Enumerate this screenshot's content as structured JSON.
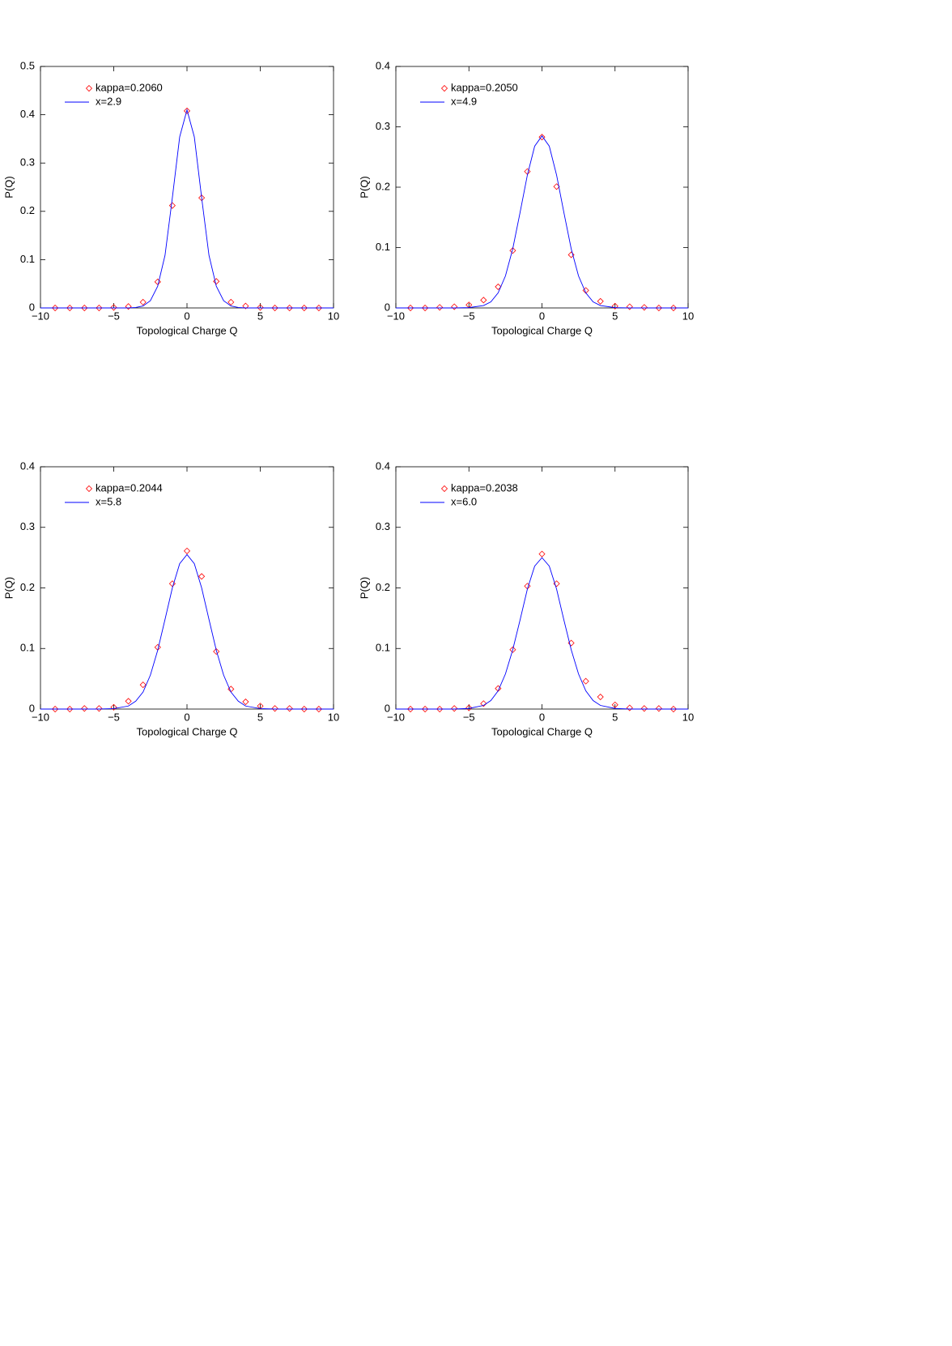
{
  "chart_data": [
    {
      "type": "scatter",
      "xlabel": "Topological Charge Q",
      "ylabel": "P(Q)",
      "xlim": [
        -10,
        10
      ],
      "xticks": [
        {
          "value": -10,
          "label": "−10"
        },
        {
          "value": -5,
          "label": "−5"
        },
        0,
        5,
        10
      ],
      "ylim": [
        0,
        0.5
      ],
      "yticks": [
        0,
        0.1,
        0.2,
        0.3,
        0.4,
        0.5
      ],
      "series": [
        {
          "name": "kappa=0.2060",
          "type": "scatter",
          "marker": "diamond",
          "color": "#ff0000",
          "x": [
            -9,
            -8,
            -7,
            -6,
            -5,
            -4,
            -3,
            -2,
            -1,
            0,
            1,
            2,
            3,
            4,
            5,
            6,
            7,
            8,
            9
          ],
          "values": [
            0,
            0,
            0,
            0,
            0.001,
            0.003,
            0.012,
            0.054,
            0.212,
            0.408,
            0.228,
            0.055,
            0.012,
            0.004,
            0.001,
            0,
            0,
            0,
            0
          ]
        },
        {
          "name": "x=2.9",
          "type": "line",
          "color": "#0000ff",
          "x": [
            -10,
            -6,
            -5,
            -4,
            -3.5,
            -3,
            -2.5,
            -2,
            -1.5,
            -1,
            -0.5,
            0,
            0.5,
            1,
            1.5,
            2,
            2.5,
            3,
            3.5,
            4,
            5,
            6,
            10
          ],
          "values": [
            0,
            0,
            0,
            0,
            0.001,
            0.004,
            0.015,
            0.045,
            0.109,
            0.228,
            0.354,
            0.41,
            0.354,
            0.228,
            0.109,
            0.045,
            0.015,
            0.004,
            0.001,
            0,
            0,
            0,
            0
          ]
        }
      ]
    },
    {
      "type": "scatter",
      "xlabel": "Topological Charge Q",
      "ylabel": "P(Q)",
      "xlim": [
        -10,
        10
      ],
      "xticks": [
        {
          "value": -10,
          "label": "−10"
        },
        {
          "value": -5,
          "label": "−5"
        },
        0,
        5,
        10
      ],
      "ylim": [
        0,
        0.4
      ],
      "yticks": [
        0,
        0.1,
        0.2,
        0.3,
        0.4
      ],
      "series": [
        {
          "name": "kappa=0.2050",
          "type": "scatter",
          "marker": "diamond",
          "color": "#ff0000",
          "x": [
            -9,
            -8,
            -7,
            -6,
            -5,
            -4,
            -3,
            -2,
            -1,
            0,
            1,
            2,
            3,
            4,
            5,
            6,
            7,
            8,
            9
          ],
          "values": [
            0,
            0,
            0.001,
            0.002,
            0.005,
            0.013,
            0.035,
            0.095,
            0.226,
            0.283,
            0.201,
            0.088,
            0.029,
            0.011,
            0.003,
            0.002,
            0.001,
            0,
            0
          ]
        },
        {
          "name": "x=4.9",
          "type": "line",
          "color": "#0000ff",
          "x": [
            -10,
            -6,
            -5,
            -4,
            -3.5,
            -3,
            -2.5,
            -2,
            -1.5,
            -1,
            -0.5,
            0,
            0.5,
            1,
            1.5,
            2,
            2.5,
            3,
            3.5,
            4,
            5,
            6,
            10
          ],
          "values": [
            0,
            0,
            0.0005,
            0.004,
            0.01,
            0.025,
            0.053,
            0.098,
            0.158,
            0.22,
            0.268,
            0.285,
            0.268,
            0.22,
            0.158,
            0.098,
            0.053,
            0.025,
            0.01,
            0.004,
            0.0005,
            0,
            0
          ]
        }
      ]
    },
    {
      "type": "scatter",
      "xlabel": "Topological Charge Q",
      "ylabel": "P(Q)",
      "xlim": [
        -10,
        10
      ],
      "xticks": [
        {
          "value": -10,
          "label": "−10"
        },
        {
          "value": -5,
          "label": "−5"
        },
        0,
        5,
        10
      ],
      "ylim": [
        0,
        0.4
      ],
      "yticks": [
        0,
        0.1,
        0.2,
        0.3,
        0.4
      ],
      "series": [
        {
          "name": "kappa=0.2044",
          "type": "scatter",
          "marker": "diamond",
          "color": "#ff0000",
          "x": [
            -9,
            -8,
            -7,
            -6,
            -5,
            -4,
            -3,
            -2,
            -1,
            0,
            1,
            2,
            3,
            4,
            5,
            6,
            7,
            8,
            9
          ],
          "values": [
            0,
            0,
            0.001,
            0.001,
            0.003,
            0.013,
            0.04,
            0.102,
            0.207,
            0.261,
            0.219,
            0.095,
            0.033,
            0.012,
            0.005,
            0.001,
            0.001,
            0,
            0
          ]
        },
        {
          "name": "x=5.8",
          "type": "line",
          "color": "#0000ff",
          "x": [
            -10,
            -6,
            -5,
            -4,
            -3.5,
            -3,
            -2.5,
            -2,
            -1.5,
            -1,
            -0.5,
            0,
            0.5,
            1,
            1.5,
            2,
            2.5,
            3,
            3.5,
            4,
            5,
            6,
            10
          ],
          "values": [
            0,
            0,
            0.0008,
            0.005,
            0.013,
            0.028,
            0.056,
            0.097,
            0.148,
            0.2,
            0.24,
            0.255,
            0.24,
            0.2,
            0.148,
            0.097,
            0.056,
            0.028,
            0.013,
            0.005,
            0.0008,
            0,
            0
          ]
        }
      ]
    },
    {
      "type": "scatter",
      "xlabel": "Topological Charge Q",
      "ylabel": "P(Q)",
      "xlim": [
        -10,
        10
      ],
      "xticks": [
        {
          "value": -10,
          "label": "−10"
        },
        {
          "value": -5,
          "label": "−5"
        },
        0,
        5,
        10
      ],
      "ylim": [
        0,
        0.4
      ],
      "yticks": [
        0,
        0.1,
        0.2,
        0.3,
        0.4
      ],
      "series": [
        {
          "name": "kappa=0.2038",
          "type": "scatter",
          "marker": "diamond",
          "color": "#ff0000",
          "x": [
            -9,
            -8,
            -7,
            -6,
            -5,
            -4,
            -3,
            -2,
            -1,
            0,
            1,
            2,
            3,
            4,
            5,
            6,
            7,
            8,
            9
          ],
          "values": [
            0,
            0,
            0,
            0.001,
            0.002,
            0.009,
            0.034,
            0.098,
            0.203,
            0.256,
            0.207,
            0.109,
            0.046,
            0.02,
            0.007,
            0.002,
            0.001,
            0.001,
            0
          ]
        },
        {
          "name": "x=6.0",
          "type": "line",
          "color": "#0000ff",
          "x": [
            -10,
            -6,
            -5,
            -4,
            -3.5,
            -3,
            -2.5,
            -2,
            -1.5,
            -1,
            -0.5,
            0,
            0.5,
            1,
            1.5,
            2,
            2.5,
            3,
            3.5,
            4,
            5,
            6,
            10
          ],
          "values": [
            0,
            0,
            0.001,
            0.006,
            0.014,
            0.03,
            0.058,
            0.098,
            0.147,
            0.198,
            0.236,
            0.25,
            0.236,
            0.198,
            0.147,
            0.098,
            0.058,
            0.03,
            0.014,
            0.006,
            0.001,
            0,
            0
          ]
        }
      ]
    }
  ]
}
